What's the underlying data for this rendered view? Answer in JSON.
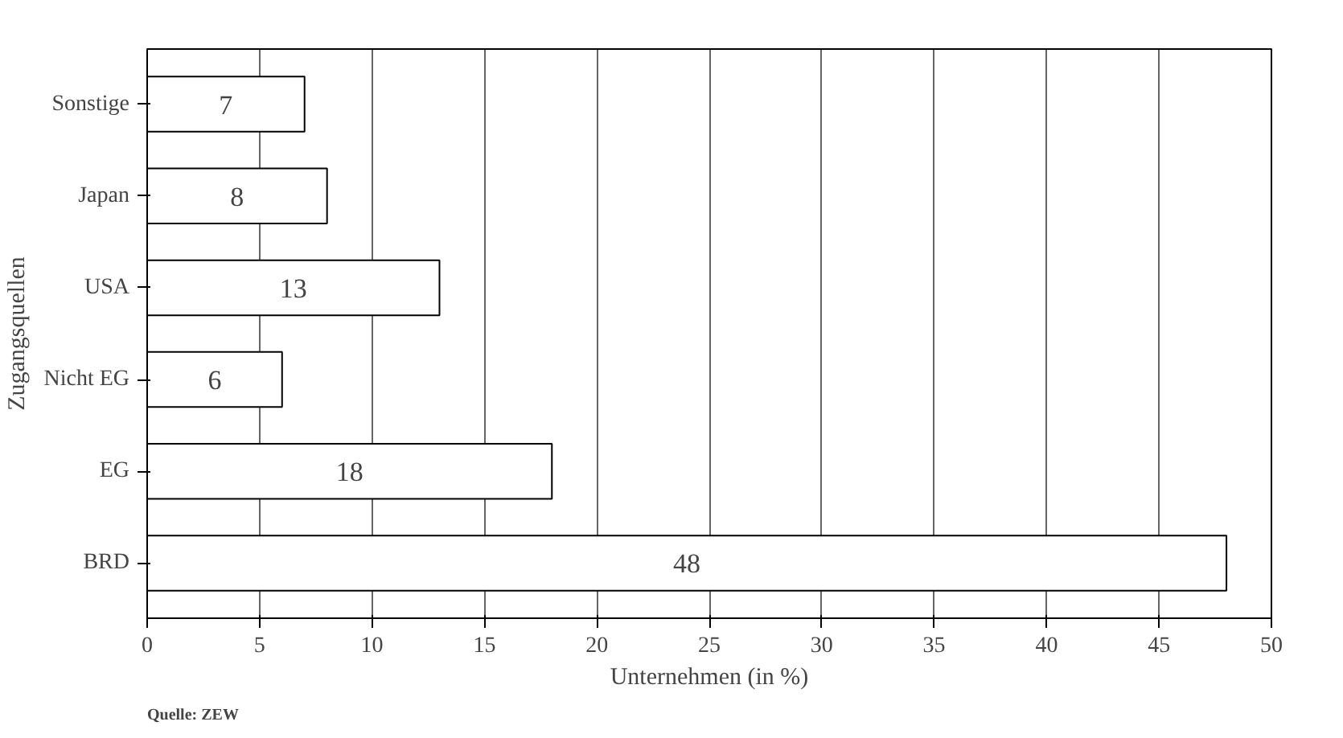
{
  "chart_data": {
    "type": "bar",
    "orientation": "horizontal",
    "categories": [
      "Sonstige",
      "Japan",
      "USA",
      "Nicht EG",
      "EG",
      "BRD"
    ],
    "values": [
      7,
      8,
      13,
      6,
      18,
      48
    ],
    "color": "#ffffff",
    "xlabel": "Unternehmen (in %)",
    "ylabel": "Zugangsquellen",
    "xlim": [
      0,
      50
    ],
    "xticks": [
      0,
      5,
      10,
      15,
      20,
      25,
      30,
      35,
      40,
      45,
      50
    ],
    "grid": "x",
    "data_labels": true,
    "annotations": [
      "Quelle: ZEW"
    ]
  }
}
